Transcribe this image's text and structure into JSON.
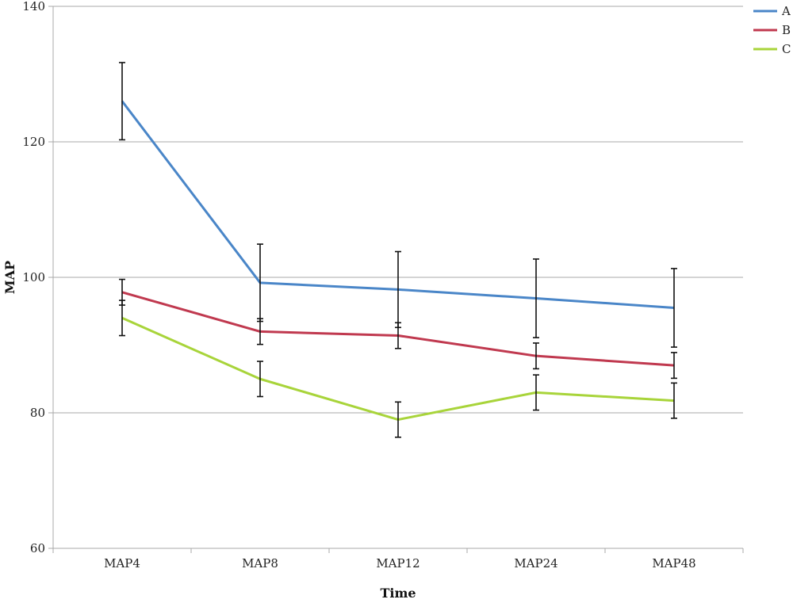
{
  "chart_data": {
    "type": "line",
    "title": "",
    "xlabel": "Time",
    "ylabel": "MAP",
    "categories": [
      "MAP4",
      "MAP8",
      "MAP12",
      "MAP24",
      "MAP48"
    ],
    "ylim": [
      60,
      140
    ],
    "yticks": [
      60,
      80,
      100,
      120,
      140
    ],
    "grid": true,
    "legend_position": "top-right",
    "series": [
      {
        "name": "A",
        "color": "#4a86c8",
        "values": [
          126,
          99.2,
          98.2,
          96.9,
          95.5
        ],
        "error": [
          5.7,
          5.7,
          5.6,
          5.8,
          5.8
        ]
      },
      {
        "name": "B",
        "color": "#c0394f",
        "values": [
          97.8,
          92,
          91.4,
          88.4,
          87
        ],
        "error": [
          1.9,
          1.9,
          1.9,
          1.9,
          1.9
        ]
      },
      {
        "name": "C",
        "color": "#a8d43a",
        "values": [
          94,
          85,
          79,
          83,
          81.8
        ],
        "error": [
          2.6,
          2.6,
          2.6,
          2.6,
          2.6
        ]
      }
    ]
  }
}
